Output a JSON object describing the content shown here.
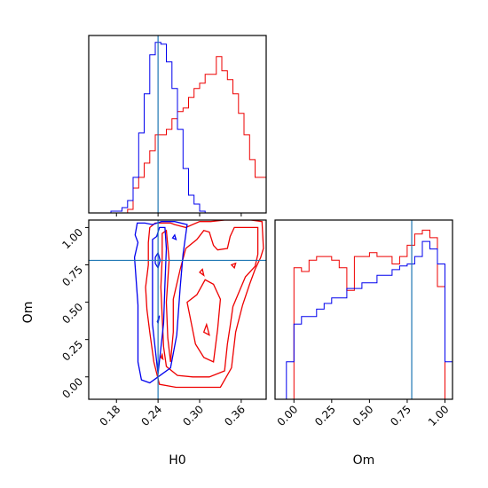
{
  "chart_data": {
    "type": "corner",
    "colors": {
      "blue": "#0000ee",
      "red": "#ee0000",
      "truth": "#1f77b4"
    },
    "truth": {
      "H0": 0.24,
      "Om": 0.78
    },
    "H0_hist": {
      "edges": [
        0.14,
        0.148,
        0.156,
        0.164,
        0.172,
        0.18,
        0.188,
        0.196,
        0.204,
        0.212,
        0.22,
        0.228,
        0.236,
        0.244,
        0.252,
        0.26,
        0.268,
        0.276,
        0.284,
        0.292,
        0.3,
        0.308,
        0.316,
        0.324,
        0.332,
        0.34,
        0.348,
        0.356,
        0.364,
        0.372,
        0.38,
        0.388,
        0.396
      ],
      "blue": [
        0,
        0,
        0,
        0,
        1,
        1,
        3,
        7,
        20,
        45,
        67,
        89,
        96,
        95,
        85,
        70,
        47,
        25,
        10,
        5,
        1,
        0,
        0,
        0,
        0,
        0,
        0,
        0,
        0,
        0,
        0,
        0
      ],
      "red": [
        0,
        0,
        0,
        0,
        0,
        0,
        0,
        2,
        14,
        20,
        28,
        35,
        44,
        44,
        47,
        53,
        57,
        59,
        65,
        70,
        73,
        78,
        78,
        88,
        80,
        75,
        67,
        56,
        44,
        30,
        20,
        20
      ]
    },
    "Om_hist": {
      "edges": [
        -0.1,
        -0.05,
        0.0,
        0.05,
        0.1,
        0.15,
        0.2,
        0.25,
        0.3,
        0.35,
        0.4,
        0.45,
        0.5,
        0.55,
        0.6,
        0.65,
        0.7,
        0.75,
        0.8,
        0.85,
        0.9,
        0.95,
        1.0,
        1.05
      ],
      "blue": [
        0,
        20,
        40,
        44,
        44,
        48,
        51,
        54,
        54,
        59,
        59,
        62,
        62,
        66,
        66,
        69,
        71,
        72,
        76,
        84,
        80,
        72,
        20
      ],
      "red": [
        0,
        0,
        70,
        68,
        74,
        76,
        76,
        74,
        70,
        58,
        76,
        76,
        78,
        76,
        76,
        72,
        76,
        82,
        88,
        90,
        86,
        60,
        0
      ]
    },
    "blue_contours": [
      [
        [
          0.211,
          0.48
        ],
        [
          0.211,
          0.1
        ],
        [
          0.216,
          -0.02
        ],
        [
          0.228,
          -0.04
        ],
        [
          0.24,
          0.0
        ],
        [
          0.258,
          0.06
        ],
        [
          0.267,
          0.28
        ],
        [
          0.272,
          0.6
        ],
        [
          0.276,
          0.82
        ],
        [
          0.282,
          1.02
        ],
        [
          0.264,
          1.04
        ],
        [
          0.245,
          1.04
        ],
        [
          0.232,
          1.02
        ],
        [
          0.221,
          1.03
        ],
        [
          0.21,
          1.03
        ],
        [
          0.207,
          0.95
        ],
        [
          0.211,
          0.9
        ],
        [
          0.206,
          0.8
        ]
      ],
      [
        [
          0.232,
          0.92
        ],
        [
          0.232,
          0.35
        ],
        [
          0.24,
          0.02
        ],
        [
          0.248,
          0.36
        ],
        [
          0.25,
          0.62
        ],
        [
          0.252,
          0.86
        ],
        [
          0.25,
          1.0
        ],
        [
          0.242,
          1.0
        ],
        [
          0.238,
          0.94
        ]
      ],
      [
        [
          0.236,
          0.76
        ],
        [
          0.24,
          0.73
        ],
        [
          0.243,
          0.78
        ],
        [
          0.24,
          0.83
        ],
        [
          0.236,
          0.8
        ]
      ],
      [
        [
          0.261,
          0.93
        ],
        [
          0.266,
          0.92
        ],
        [
          0.264,
          0.95
        ]
      ],
      [
        [
          0.239,
          0.37
        ],
        [
          0.242,
          0.41
        ],
        [
          0.24,
          0.36
        ]
      ]
    ],
    "red_contours": [
      [
        [
          0.226,
          0.9
        ],
        [
          0.226,
          0.75
        ],
        [
          0.222,
          0.6
        ],
        [
          0.224,
          0.45
        ],
        [
          0.228,
          0.3
        ],
        [
          0.234,
          0.1
        ],
        [
          0.242,
          -0.05
        ],
        [
          0.266,
          -0.07
        ],
        [
          0.3,
          -0.07
        ],
        [
          0.33,
          -0.07
        ],
        [
          0.346,
          0.06
        ],
        [
          0.352,
          0.3
        ],
        [
          0.362,
          0.48
        ],
        [
          0.372,
          0.62
        ],
        [
          0.38,
          0.72
        ],
        [
          0.388,
          0.8
        ],
        [
          0.392,
          0.86
        ],
        [
          0.39,
          1.04
        ],
        [
          0.374,
          1.05
        ],
        [
          0.352,
          1.05
        ],
        [
          0.336,
          1.05
        ],
        [
          0.316,
          1.04
        ],
        [
          0.3,
          1.04
        ],
        [
          0.28,
          1.0
        ],
        [
          0.264,
          1.02
        ],
        [
          0.258,
          1.03
        ],
        [
          0.236,
          1.03
        ],
        [
          0.228,
          1.0
        ]
      ],
      [
        [
          0.246,
          0.96
        ],
        [
          0.246,
          0.8
        ],
        [
          0.244,
          0.6
        ],
        [
          0.246,
          0.4
        ],
        [
          0.248,
          0.2
        ],
        [
          0.252,
          0.07
        ],
        [
          0.268,
          0.01
        ],
        [
          0.29,
          0.0
        ],
        [
          0.314,
          0.0
        ],
        [
          0.336,
          0.04
        ],
        [
          0.34,
          0.22
        ],
        [
          0.344,
          0.34
        ],
        [
          0.348,
          0.47
        ],
        [
          0.356,
          0.56
        ],
        [
          0.366,
          0.67
        ],
        [
          0.38,
          0.74
        ],
        [
          0.384,
          0.82
        ],
        [
          0.384,
          1.0
        ],
        [
          0.374,
          1.0
        ],
        [
          0.362,
          1.0
        ],
        [
          0.35,
          1.0
        ],
        [
          0.344,
          0.94
        ],
        [
          0.34,
          0.86
        ],
        [
          0.326,
          0.85
        ],
        [
          0.32,
          0.88
        ],
        [
          0.314,
          0.97
        ],
        [
          0.306,
          0.98
        ],
        [
          0.296,
          0.92
        ],
        [
          0.28,
          0.86
        ],
        [
          0.272,
          0.72
        ],
        [
          0.266,
          0.6
        ],
        [
          0.262,
          0.52
        ],
        [
          0.262,
          0.3
        ],
        [
          0.258,
          0.1
        ],
        [
          0.254,
          0.26
        ],
        [
          0.252,
          0.5
        ],
        [
          0.256,
          0.78
        ],
        [
          0.252,
          0.98
        ]
      ],
      [
        [
          0.282,
          0.5
        ],
        [
          0.294,
          0.22
        ],
        [
          0.306,
          0.13
        ],
        [
          0.32,
          0.1
        ],
        [
          0.326,
          0.32
        ],
        [
          0.33,
          0.52
        ],
        [
          0.32,
          0.62
        ],
        [
          0.308,
          0.65
        ],
        [
          0.296,
          0.55
        ]
      ],
      [
        [
          0.306,
          0.3
        ],
        [
          0.31,
          0.35
        ],
        [
          0.314,
          0.28
        ]
      ],
      [
        [
          0.3,
          0.7
        ],
        [
          0.304,
          0.72
        ],
        [
          0.306,
          0.68
        ]
      ],
      [
        [
          0.244,
          0.13
        ],
        [
          0.247,
          0.12
        ],
        [
          0.246,
          0.15
        ]
      ],
      [
        [
          0.346,
          0.75
        ],
        [
          0.352,
          0.76
        ],
        [
          0.35,
          0.73
        ]
      ]
    ],
    "H0_axis": {
      "label": "H0",
      "range": [
        0.14,
        0.396
      ],
      "ticks": [
        0.18,
        0.24,
        0.3,
        0.36
      ],
      "tick_labels": [
        "0.18",
        "0.24",
        "0.30",
        "0.36"
      ]
    },
    "Om_axis": {
      "label": "Om",
      "range": [
        -0.15,
        1.05
      ],
      "ticks": [
        0.0,
        0.25,
        0.5,
        0.75,
        1.0
      ],
      "tick_labels": [
        "0.00",
        "0.25",
        "0.50",
        "0.75",
        "1.00"
      ]
    },
    "Om_hist_axis": {
      "label": "Om",
      "range": [
        -0.125,
        1.05
      ],
      "ticks": [
        0.0,
        0.25,
        0.5,
        0.75,
        1.0
      ],
      "tick_labels": [
        "0.00",
        "0.25",
        "0.50",
        "0.75",
        "1.00"
      ]
    },
    "grid": false
  }
}
